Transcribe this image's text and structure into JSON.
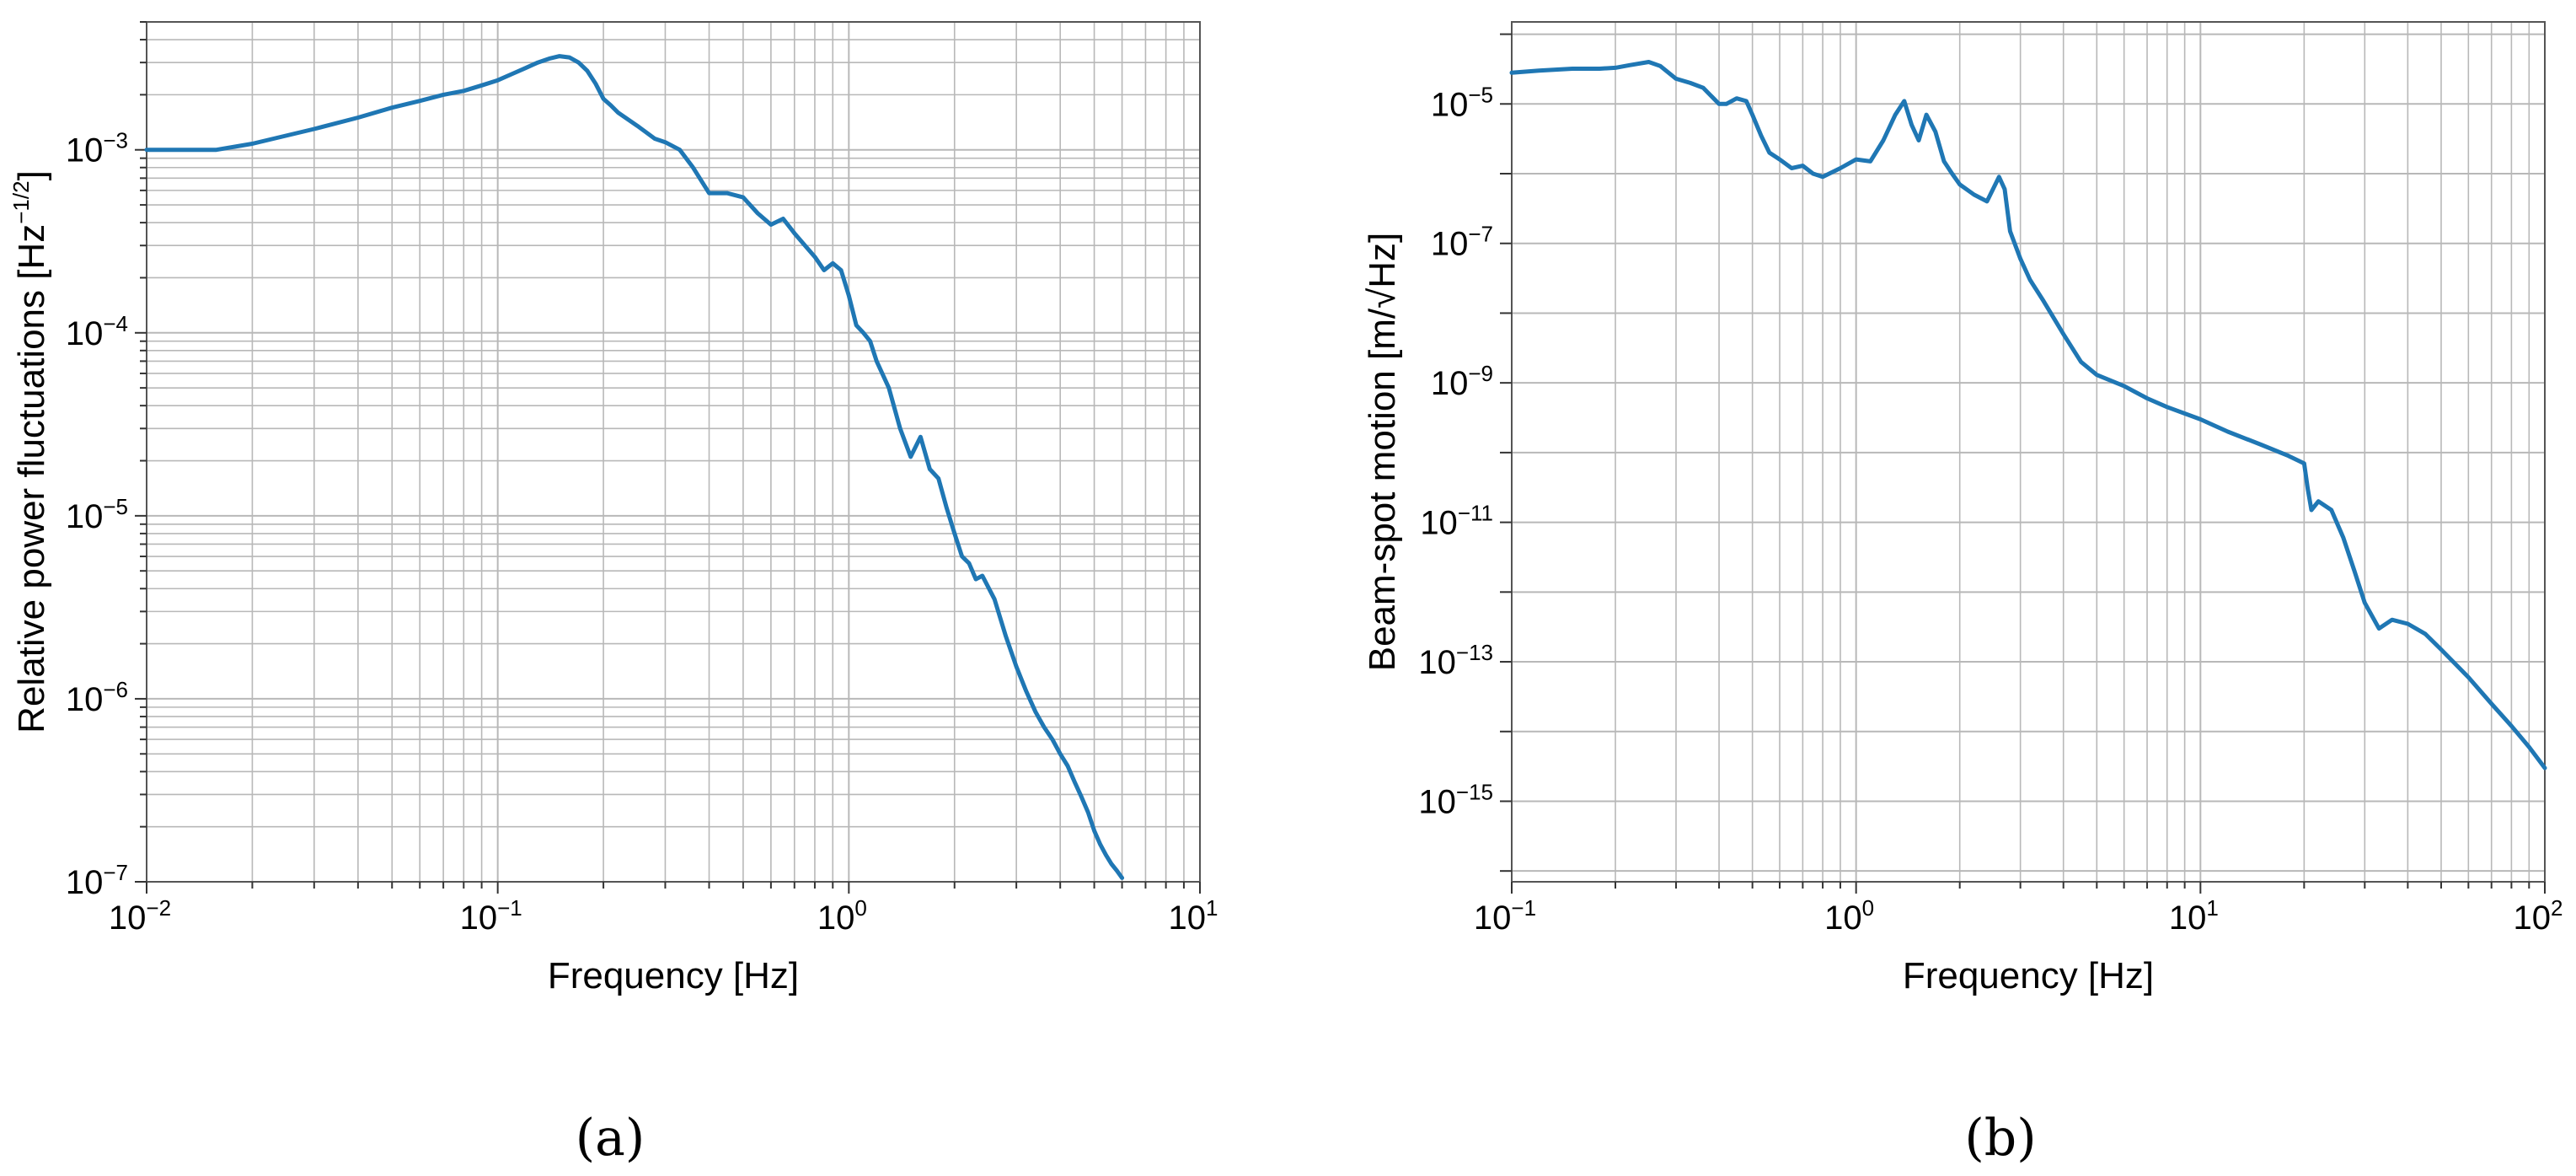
{
  "figure": {
    "panels": [
      {
        "label": "(a)",
        "letter": "a"
      },
      {
        "label": "(b)",
        "letter": "b"
      }
    ]
  },
  "chart_data": [
    {
      "type": "line",
      "panel": "(a)",
      "xlabel": "Frequency [Hz]",
      "ylabel": "Relative power fluctuations [Hz",
      "ylabel_sup": "−1/2",
      "ylabel_end": "]",
      "xscale": "log",
      "yscale": "log",
      "xlim": [
        0.01,
        10
      ],
      "ylim": [
        1e-07,
        0.005
      ],
      "xticks": [
        {
          "base": "10",
          "exp": "−2",
          "value": 0.01
        },
        {
          "base": "10",
          "exp": "−1",
          "value": 0.1
        },
        {
          "base": "10",
          "exp": "0",
          "value": 1
        },
        {
          "base": "10",
          "exp": "1",
          "value": 10
        }
      ],
      "yticks": [
        {
          "base": "10",
          "exp": "−7",
          "value": 1e-07
        },
        {
          "base": "10",
          "exp": "−6",
          "value": 1e-06
        },
        {
          "base": "10",
          "exp": "−5",
          "value": 1e-05
        },
        {
          "base": "10",
          "exp": "−4",
          "value": 0.0001
        },
        {
          "base": "10",
          "exp": "−3",
          "value": 0.001
        }
      ],
      "grid": true,
      "color": "#1f77b4",
      "series": [
        {
          "x": [
            0.01,
            0.0158,
            0.02,
            0.03,
            0.04,
            0.05,
            0.06,
            0.07,
            0.08,
            0.09,
            0.1,
            0.11,
            0.12,
            0.13,
            0.14,
            0.15,
            0.16,
            0.17,
            0.18,
            0.19,
            0.2,
            0.21,
            0.22,
            0.25,
            0.28,
            0.3,
            0.33,
            0.36,
            0.4,
            0.45,
            0.5,
            0.55,
            0.6,
            0.65,
            0.7,
            0.75,
            0.8,
            0.85,
            0.9,
            0.95,
            1.0,
            1.05,
            1.1,
            1.15,
            1.2,
            1.3,
            1.4,
            1.5,
            1.6,
            1.7,
            1.8,
            1.9,
            2.0,
            2.1,
            2.2,
            2.3,
            2.4,
            2.6,
            2.8,
            3.0,
            3.2,
            3.4,
            3.6,
            3.8,
            4.0,
            4.2,
            4.4,
            4.6,
            4.8,
            5.0,
            5.2,
            5.4,
            5.6,
            5.8,
            6.0
          ],
          "y": [
            0.001,
            0.001,
            0.00108,
            0.0013,
            0.0015,
            0.0017,
            0.00185,
            0.002,
            0.0021,
            0.00225,
            0.0024,
            0.0026,
            0.0028,
            0.003,
            0.00315,
            0.00325,
            0.0032,
            0.003,
            0.0027,
            0.0023,
            0.0019,
            0.00175,
            0.0016,
            0.00135,
            0.00115,
            0.0011,
            0.001,
            0.0008,
            0.00058,
            0.00058,
            0.00055,
            0.00045,
            0.00039,
            0.00042,
            0.00035,
            0.0003,
            0.00026,
            0.00022,
            0.00024,
            0.00022,
            0.00016,
            0.00011,
            0.0001,
            9e-05,
            7e-05,
            5e-05,
            3e-05,
            2.1e-05,
            2.7e-05,
            1.8e-05,
            1.6e-05,
            1.1e-05,
            8e-06,
            6e-06,
            5.5e-06,
            4.5e-06,
            4.7e-06,
            3.5e-06,
            2.2e-06,
            1.5e-06,
            1.1e-06,
            8.5e-07,
            7e-07,
            6e-07,
            5e-07,
            4.3e-07,
            3.5e-07,
            2.9e-07,
            2.4e-07,
            1.9e-07,
            1.6e-07,
            1.4e-07,
            1.25e-07,
            1.15e-07,
            1.05e-07
          ]
        }
      ]
    },
    {
      "type": "line",
      "panel": "(b)",
      "xlabel": "Frequency [Hz]",
      "ylabel": "Beam-spot motion [m/√Hz]",
      "xscale": "log",
      "yscale": "log",
      "xlim": [
        0.1,
        100
      ],
      "ylim": [
        7e-17,
        0.00015
      ],
      "xticks": [
        {
          "base": "10",
          "exp": "−1",
          "value": 0.1
        },
        {
          "base": "10",
          "exp": "0",
          "value": 1
        },
        {
          "base": "10",
          "exp": "1",
          "value": 10
        },
        {
          "base": "10",
          "exp": "2",
          "value": 100
        }
      ],
      "yticks": [
        {
          "base": "10",
          "exp": "−15",
          "value": 1e-15
        },
        {
          "base": "10",
          "exp": "−13",
          "value": 1e-13
        },
        {
          "base": "10",
          "exp": "−11",
          "value": 1e-11
        },
        {
          "base": "10",
          "exp": "−9",
          "value": 1e-09
        },
        {
          "base": "10",
          "exp": "−7",
          "value": 1e-07
        },
        {
          "base": "10",
          "exp": "−5",
          "value": 1e-05
        }
      ],
      "grid": true,
      "color": "#1f77b4",
      "series": [
        {
          "x": [
            0.1,
            0.12,
            0.15,
            0.18,
            0.2,
            0.22,
            0.25,
            0.27,
            0.3,
            0.33,
            0.36,
            0.4,
            0.42,
            0.45,
            0.48,
            0.5,
            0.53,
            0.56,
            0.6,
            0.65,
            0.7,
            0.75,
            0.8,
            0.9,
            1.0,
            1.1,
            1.2,
            1.3,
            1.38,
            1.45,
            1.52,
            1.6,
            1.7,
            1.8,
            1.9,
            2.0,
            2.2,
            2.4,
            2.6,
            2.7,
            2.8,
            3.0,
            3.2,
            3.5,
            4.0,
            4.5,
            5.0,
            6.0,
            7.0,
            8.0,
            10,
            12,
            15,
            18,
            20,
            20.5,
            21,
            22,
            24,
            26,
            28,
            30,
            33,
            36,
            40,
            45,
            50,
            60,
            70,
            80,
            90,
            100
          ],
          "y": [
            2.8e-05,
            3e-05,
            3.2e-05,
            3.2e-05,
            3.3e-05,
            3.6e-05,
            4e-05,
            3.5e-05,
            2.3e-05,
            2e-05,
            1.7e-05,
            1e-05,
            1e-05,
            1.2e-05,
            1.1e-05,
            7e-06,
            3.5e-06,
            2e-06,
            1.6e-06,
            1.2e-06,
            1.3e-06,
            1e-06,
            9e-07,
            1.2e-06,
            1.6e-06,
            1.5e-06,
            3e-06,
            7e-06,
            1.1e-05,
            5e-06,
            3e-06,
            7e-06,
            4e-06,
            1.5e-06,
            1e-06,
            7e-07,
            5e-07,
            4e-07,
            9e-07,
            6e-07,
            1.5e-07,
            6e-08,
            3e-08,
            1.5e-08,
            5e-09,
            2e-09,
            1.3e-09,
            9e-10,
            6e-10,
            4.5e-10,
            3e-10,
            2e-10,
            1.3e-10,
            9e-11,
            7e-11,
            3e-11,
            1.5e-11,
            2e-11,
            1.5e-11,
            6e-12,
            2e-12,
            7e-13,
            3e-13,
            4e-13,
            3.5e-13,
            2.5e-13,
            1.5e-13,
            6e-14,
            2.5e-14,
            1.2e-14,
            6e-15,
            3e-15
          ]
        }
      ]
    }
  ]
}
